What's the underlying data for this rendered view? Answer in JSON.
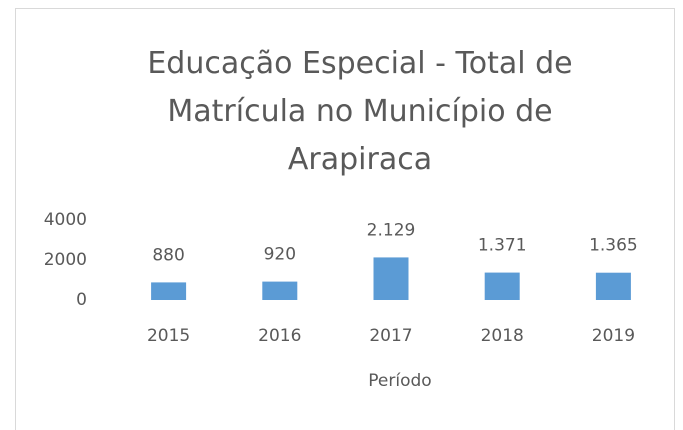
{
  "chart_data": {
    "type": "bar",
    "title": "Educação Especial - Total de Matrícula no Município de Arapiraca",
    "x_label": "Período",
    "categories": [
      "2015",
      "2016",
      "2017",
      "2018",
      "2019"
    ],
    "values": [
      880,
      920,
      2129,
      1371,
      1365
    ],
    "value_labels": [
      "880",
      "920",
      "2.129",
      "1.371",
      "1.365"
    ],
    "color": "#5b9bd5",
    "ylim": [
      0,
      4000
    ],
    "yticks": [
      0,
      2000,
      4000
    ],
    "grid": false
  }
}
